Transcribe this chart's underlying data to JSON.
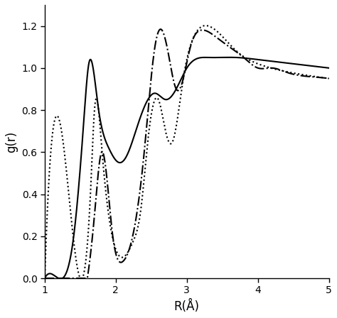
{
  "title": "",
  "xlabel": "R(Å)",
  "ylabel": "g(r)",
  "xlim": [
    1,
    5
  ],
  "ylim": [
    0.0,
    1.3
  ],
  "xticks": [
    1,
    2,
    3,
    4,
    5
  ],
  "yticks": [
    0.0,
    0.2,
    0.4,
    0.6,
    0.8,
    1.0,
    1.2
  ],
  "background_color": "#ffffff",
  "line_color": "#000000",
  "figsize": [
    4.74,
    4.48
  ],
  "dpi": 100
}
